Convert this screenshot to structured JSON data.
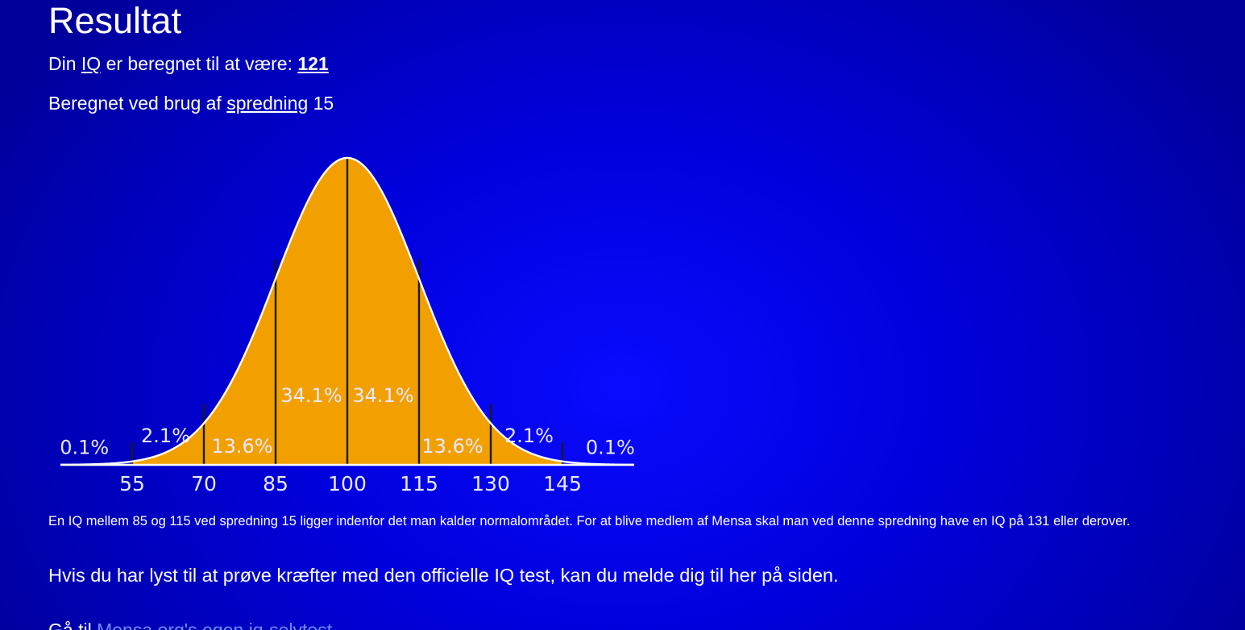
{
  "heading": "Resultat",
  "result": {
    "prefix": "Din",
    "iq_link": "IQ",
    "middle": "er beregnet til at være:",
    "value": "121"
  },
  "spread": {
    "prefix": "Beregnet ved brug af",
    "link": "spredning",
    "value": "15"
  },
  "chart_data": {
    "type": "area",
    "distribution": "normal",
    "mean": 100,
    "sd": 15,
    "xlim": [
      40,
      160
    ],
    "x_ticks": [
      "55",
      "70",
      "85",
      "100",
      "115",
      "130",
      "145"
    ],
    "x_tick_values": [
      55,
      70,
      85,
      100,
      115,
      130,
      145
    ],
    "fill_range": [
      55,
      145
    ],
    "region_labels": [
      {
        "x": 45,
        "level": 0.0015,
        "text": "0.1%"
      },
      {
        "x": 62,
        "level": 0.0025,
        "text": "2.1%"
      },
      {
        "x": 78,
        "level": 0.0016,
        "text": "13.6%"
      },
      {
        "x": 92.5,
        "level": 0.006,
        "text": "34.1%"
      },
      {
        "x": 107.5,
        "level": 0.006,
        "text": "34.1%"
      },
      {
        "x": 122,
        "level": 0.0016,
        "text": "13.6%"
      },
      {
        "x": 138,
        "level": 0.0025,
        "text": "2.1%"
      },
      {
        "x": 155,
        "level": 0.0015,
        "text": "0.1%"
      }
    ],
    "colors": {
      "fill": "#f2a000",
      "curve": "#ffffff",
      "lines": "#1a1a1a",
      "text": "#e8e8ff"
    },
    "legend": "none",
    "grid": false
  },
  "note": "En IQ mellem 85 og 115 ved spredning 15 ligger indenfor det man kalder normalområdet. For at blive medlem af Mensa skal man ved denne spredning have en IQ på 131 eller derover.",
  "official_test": "Hvis du har lyst til at prøve kræfter med den officielle IQ test, kan du melde dig til her på siden.",
  "goto": {
    "prefix": "Gå til",
    "link": "Mensa.org's egen iq-selvtest"
  },
  "colors": {
    "background": "#0000dc",
    "text": "#ffffff",
    "link_muted": "#6e8cff"
  }
}
